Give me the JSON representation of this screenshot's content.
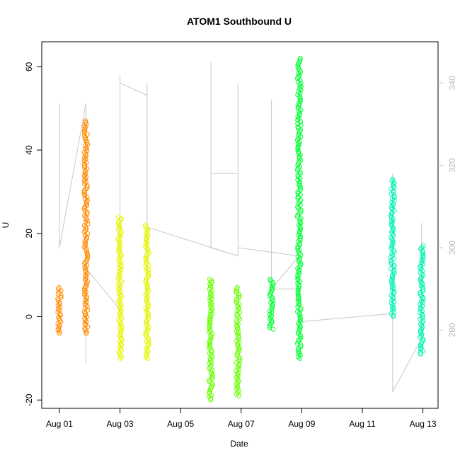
{
  "chart_data": {
    "type": "scatter",
    "title": "ATOM1 Southbound U",
    "xlabel": "Date",
    "ylabel": "U",
    "x_ticks": [
      "Aug 01",
      "Aug 03",
      "Aug 05",
      "Aug 07",
      "Aug 09",
      "Aug 11",
      "Aug 13"
    ],
    "y_ticks": [
      -20,
      0,
      20,
      40,
      60
    ],
    "y2_ticks": [
      280,
      300,
      320,
      340
    ],
    "xlim": [
      "2023-07-31T10:00",
      "2023-08-13T12:00"
    ],
    "ylim": [
      -22,
      66
    ],
    "y2lim": [
      261,
      350
    ],
    "grid": false,
    "legend": "none",
    "series": [
      {
        "color": "#ff8c00",
        "clusters": [
          {
            "x": "2023-08-01T00:00",
            "ymin": -4,
            "ymax": 7
          },
          {
            "x": "2023-08-01T21:00",
            "ymin": -4,
            "ymax": 47
          }
        ]
      },
      {
        "color": "#e6f500",
        "clusters": [
          {
            "x": "2023-08-03T00:00",
            "ymin": -10,
            "ymax": 24
          },
          {
            "x": "2023-08-03T21:30",
            "ymin": -10,
            "ymax": 22
          }
        ]
      },
      {
        "color": "#66ff00",
        "clusters": [
          {
            "x": "2023-08-06T00:00",
            "ymin": -20,
            "ymax": 9
          },
          {
            "x": "2023-08-06T21:30",
            "ymin": -19,
            "ymax": 7
          }
        ]
      },
      {
        "color": "#00ff33",
        "clusters": [
          {
            "x": "2023-08-08T00:00",
            "ymin": -3,
            "ymax": 9
          },
          {
            "x": "2023-08-08T22:00",
            "ymin": -10,
            "ymax": 62
          }
        ]
      },
      {
        "color": "#00f5b0",
        "clusters": [
          {
            "x": "2023-08-12T00:00",
            "ymin": 0,
            "ymax": 33
          },
          {
            "x": "2023-08-12T23:00",
            "ymin": -9,
            "ymax": 17
          }
        ]
      }
    ],
    "line_series": {
      "color": "#c8c8c8",
      "axis": "right",
      "segments": [
        {
          "x": [
            "2023-08-01T00:00",
            "2023-08-01T00:00",
            "2023-08-01T00:00",
            "2023-08-01T00:00",
            "2023-08-01T21:00",
            "2023-08-01T21:00",
            "2023-08-01T21:00"
          ],
          "y": [
            320,
            335,
            335,
            300,
            335,
            272,
            290
          ]
        },
        {
          "x": [
            "2023-08-01T21:00",
            "2023-08-03T00:00",
            "2023-08-03T00:00",
            "2023-08-03T00:00",
            "2023-08-03T21:30",
            "2023-08-03T21:30",
            "2023-08-03T21:30",
            "2023-08-03T21:30"
          ],
          "y": [
            295,
            285,
            342,
            340,
            337,
            280,
            340,
            287
          ]
        },
        {
          "x": [
            "2023-08-03T21:30",
            "2023-08-06T21:30",
            "2023-08-06T00:00",
            "2023-08-06T00:00",
            "2023-08-06T00:00",
            "2023-08-06T21:30",
            "2023-08-06T21:30",
            "2023-08-06T21:30"
          ],
          "y": [
            305,
            298,
            300,
            345,
            318,
            318,
            340,
            298
          ]
        },
        {
          "x": [
            "2023-08-06T21:30",
            "2023-08-08T22:00",
            "2023-08-08T00:00",
            "2023-08-08T00:00",
            "2023-08-08T00:00",
            "2023-08-08T22:00",
            "2023-08-08T22:00"
          ],
          "y": [
            300,
            298,
            290,
            336,
            290,
            290,
            280
          ]
        },
        {
          "x": [
            "2023-08-08T22:00",
            "2023-08-12T00:00",
            "2023-08-12T00:00",
            "2023-08-12T00:00",
            "2023-08-12T00:00",
            "2023-08-12T23:00",
            "2023-08-12T23:00",
            "2023-08-12T23:00"
          ],
          "y": [
            282,
            284,
            278,
            318,
            265,
            278,
            306,
            284
          ]
        }
      ]
    }
  }
}
